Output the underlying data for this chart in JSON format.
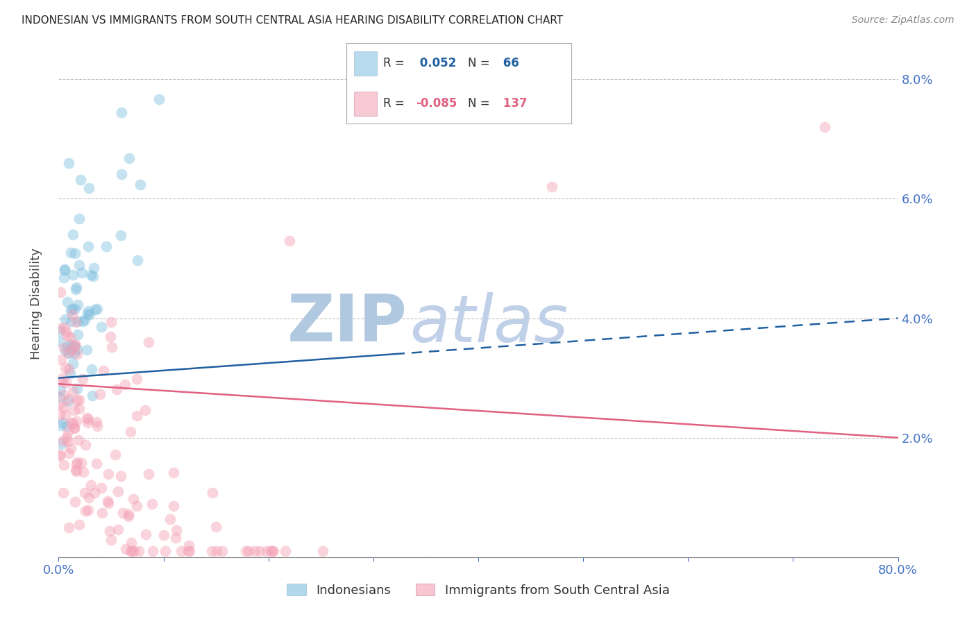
{
  "title": "INDONESIAN VS IMMIGRANTS FROM SOUTH CENTRAL ASIA HEARING DISABILITY CORRELATION CHART",
  "source": "Source: ZipAtlas.com",
  "ylabel": "Hearing Disability",
  "legend_labels": [
    "Indonesians",
    "Immigrants from South Central Asia"
  ],
  "r_blue": 0.052,
  "r_pink": -0.085,
  "n_blue": 66,
  "n_pink": 137,
  "blue_color": "#7fbfdf",
  "pink_color": "#f4a0b5",
  "blue_line_color": "#2060a0",
  "pink_line_color": "#e06080",
  "title_color": "#222222",
  "tick_color": "#4472c4",
  "background_color": "#ffffff",
  "watermark_color": "#c8d8ee",
  "xlim": [
    0.0,
    0.8
  ],
  "ylim": [
    0.0,
    0.085
  ],
  "xticks": [
    0.0,
    0.1,
    0.2,
    0.3,
    0.4,
    0.5,
    0.6,
    0.7,
    0.8
  ],
  "yticks": [
    0.0,
    0.02,
    0.04,
    0.06,
    0.08
  ],
  "marker_size": 130,
  "marker_alpha": 0.45,
  "line_width": 1.8,
  "blue_line_start_x": 0.0,
  "blue_line_split_x": 0.32,
  "blue_line_end_x": 0.8,
  "blue_line_start_y": 0.03,
  "blue_line_end_y": 0.04,
  "pink_line_start_x": 0.0,
  "pink_line_end_x": 0.8,
  "pink_line_start_y": 0.029,
  "pink_line_end_y": 0.02
}
